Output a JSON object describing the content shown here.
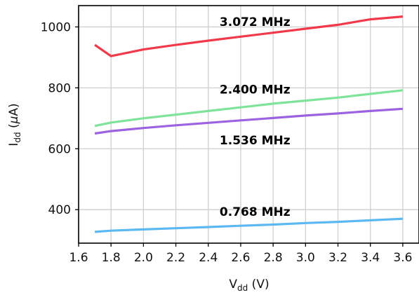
{
  "chart_data": {
    "type": "line",
    "xlabel": {
      "main": "V",
      "sub": "dd",
      "unit": " (V)"
    },
    "ylabel": {
      "main": "I",
      "sub": "dd",
      "unit_prefix": " (",
      "greek": "μ",
      "unit_suffix": "A)"
    },
    "xlim": [
      1.6,
      3.7
    ],
    "ylim": [
      290,
      1070
    ],
    "xticks": [
      1.6,
      1.8,
      2.0,
      2.2,
      2.4,
      2.6,
      2.8,
      3.0,
      3.2,
      3.4,
      3.6
    ],
    "xtick_labels": [
      "1.6",
      "1.8",
      "2.0",
      "2.2",
      "2.4",
      "2.6",
      "2.8",
      "3.0",
      "3.2",
      "3.4",
      "3.6"
    ],
    "yticks": [
      400,
      600,
      800,
      1000
    ],
    "ytick_labels": [
      "400",
      "600",
      "800",
      "1000"
    ],
    "grid": true,
    "x": [
      1.7,
      1.8,
      2.0,
      2.2,
      2.4,
      2.6,
      2.8,
      3.0,
      3.2,
      3.4,
      3.6
    ],
    "series": [
      {
        "name": "3.072 MHz",
        "color": "#f0394a",
        "label_x": 2.47,
        "label_y": 1003,
        "values": [
          941,
          904,
          926,
          941,
          955,
          968,
          981,
          994,
          1007,
          1025,
          1034
        ]
      },
      {
        "name": "2.400 MHz",
        "color": "#7fe39a",
        "label_x": 2.47,
        "label_y": 781,
        "values": [
          675,
          686,
          700,
          712,
          724,
          736,
          748,
          758,
          768,
          780,
          792
        ]
      },
      {
        "name": "1.536 MHz",
        "color": "#9b63e0",
        "label_x": 2.47,
        "label_y": 614,
        "values": [
          650,
          658,
          668,
          677,
          685,
          693,
          701,
          709,
          716,
          724,
          731
        ]
      },
      {
        "name": "0.768 MHz",
        "color": "#5cb8f0",
        "label_x": 2.47,
        "label_y": 380,
        "values": [
          327,
          331,
          335,
          339,
          343,
          347,
          351,
          356,
          360,
          365,
          370
        ]
      }
    ]
  }
}
